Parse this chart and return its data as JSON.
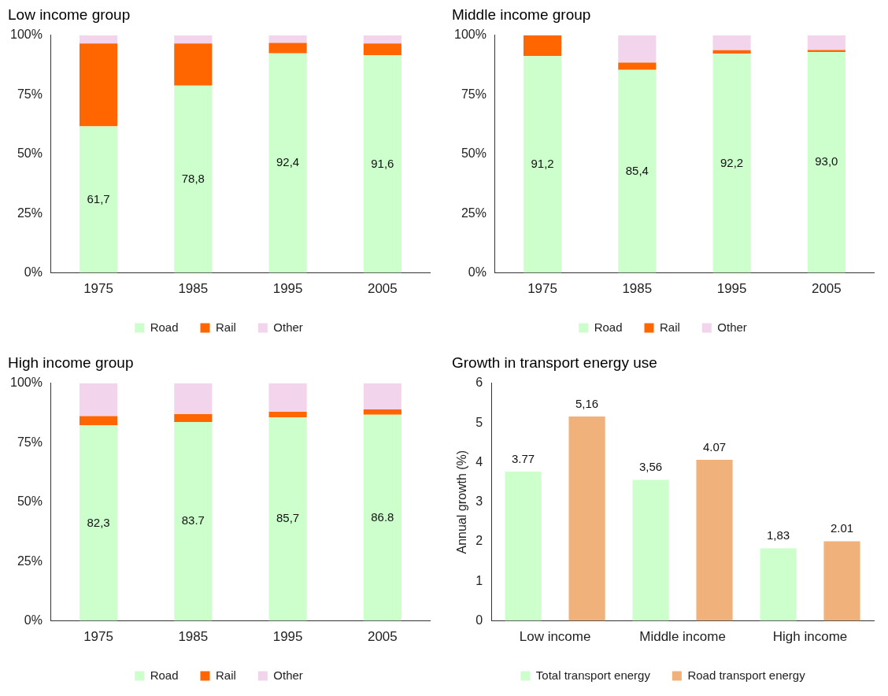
{
  "chart_data": [
    {
      "type": "bar",
      "title": "Low income group",
      "categories": [
        "1975",
        "1985",
        "1995",
        "2005"
      ],
      "stacked": true,
      "ylim": [
        0,
        100
      ],
      "yticks": [
        {
          "value": 0,
          "label": "0%"
        },
        {
          "value": 25,
          "label": "25%"
        },
        {
          "value": 50,
          "label": "50%"
        },
        {
          "value": 75,
          "label": "75%"
        },
        {
          "value": 100,
          "label": "100%"
        }
      ],
      "legend": "bottom",
      "series": [
        {
          "name": "Road",
          "color": "#ccffcc",
          "values": [
            61.7,
            78.8,
            92.4,
            91.6
          ],
          "value_labels": [
            "61,7",
            "78,8",
            "92,4",
            "91,6"
          ]
        },
        {
          "name": "Rail",
          "color": "#ff6600",
          "values": [
            34.8,
            17.7,
            4.4,
            4.9
          ]
        },
        {
          "name": "Other",
          "color": "#f2d4ec",
          "values": [
            3.5,
            3.5,
            3.2,
            3.5
          ]
        }
      ]
    },
    {
      "type": "bar",
      "title": "Middle income group",
      "categories": [
        "1975",
        "1985",
        "1995",
        "2005"
      ],
      "stacked": true,
      "ylim": [
        0,
        100
      ],
      "yticks": [
        {
          "value": 0,
          "label": "0%"
        },
        {
          "value": 25,
          "label": "25%"
        },
        {
          "value": 50,
          "label": "50%"
        },
        {
          "value": 75,
          "label": "75%"
        },
        {
          "value": 100,
          "label": "100%"
        }
      ],
      "legend": "bottom",
      "series": [
        {
          "name": "Road",
          "color": "#ccffcc",
          "values": [
            91.2,
            85.4,
            92.2,
            93.0
          ],
          "value_labels": [
            "91,2",
            "85,4",
            "92,2",
            "93,0"
          ]
        },
        {
          "name": "Rail",
          "color": "#ff6600",
          "values": [
            8.8,
            3.1,
            1.5,
            0.8
          ]
        },
        {
          "name": "Other",
          "color": "#f2d4ec",
          "values": [
            null,
            11.5,
            6.3,
            6.2
          ]
        }
      ]
    },
    {
      "type": "bar",
      "title": "High income group",
      "categories": [
        "1975",
        "1985",
        "1995",
        "2005"
      ],
      "stacked": true,
      "ylim": [
        0,
        100
      ],
      "yticks": [
        {
          "value": 0,
          "label": "0%"
        },
        {
          "value": 25,
          "label": "25%"
        },
        {
          "value": 50,
          "label": "50%"
        },
        {
          "value": 75,
          "label": "75%"
        },
        {
          "value": 100,
          "label": "100%"
        }
      ],
      "legend": "bottom",
      "series": [
        {
          "name": "Road",
          "color": "#ccffcc",
          "values": [
            82.3,
            83.7,
            85.7,
            86.8
          ],
          "value_labels": [
            "82,3",
            "83.7",
            "85,7",
            "86.8"
          ]
        },
        {
          "name": "Rail",
          "color": "#ff6600",
          "values": [
            3.9,
            3.3,
            2.3,
            2.2
          ]
        },
        {
          "name": "Other",
          "color": "#f2d4ec",
          "values": [
            13.8,
            13.0,
            12.0,
            11.0
          ]
        }
      ]
    },
    {
      "type": "bar",
      "title": "Growth in transport energy use",
      "ylabel": "Annual growth (%)",
      "categories": [
        "Low income",
        "Middle income",
        "High income"
      ],
      "ylim": [
        0,
        6
      ],
      "yticks": [
        0,
        1,
        2,
        3,
        4,
        5,
        6
      ],
      "legend": "bottom",
      "series": [
        {
          "name": "Total transport energy",
          "color": "#ccffcc",
          "values": [
            3.77,
            3.56,
            1.83
          ],
          "value_labels": [
            "3.77",
            "3,56",
            "1,83"
          ]
        },
        {
          "name": "Road transport energy",
          "color": "#f0b27a",
          "values": [
            5.16,
            4.07,
            2.01
          ],
          "value_labels": [
            "5,16",
            "4.07",
            "2.01"
          ]
        }
      ]
    }
  ]
}
